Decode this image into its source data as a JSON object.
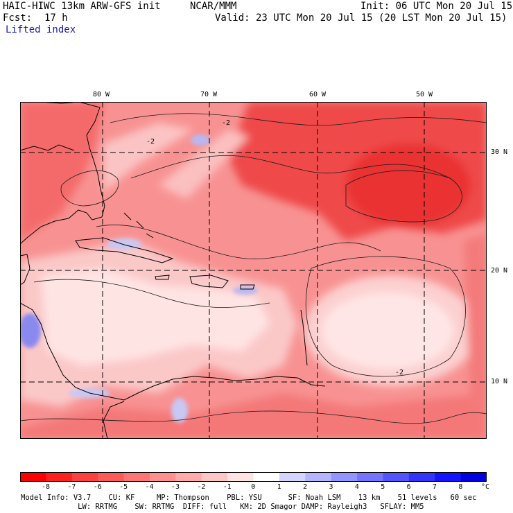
{
  "header": {
    "model_title": "HAIC-HIWC 13km ARW-GFS init",
    "org": "NCAR/MMM",
    "init": "Init: 06 UTC Mon 20 Jul 15",
    "fcst_label": "Fcst:",
    "fcst_value": "17 h",
    "valid": "Valid: 23 UTC Mon 20 Jul 15 (20 LST Mon 20 Jul 15)",
    "field": "Lifted index"
  },
  "map": {
    "lon_labels": [
      "80 W",
      "70 W",
      "60 W",
      "50 W"
    ],
    "lat_labels": [
      "30 N",
      "20 N",
      "10 N"
    ],
    "contour_label": "-2",
    "colors": {
      "deep_red": "#ee3b3b",
      "red": "#f46262",
      "salmon": "#f89292",
      "light": "#fbc4c4",
      "pale": "#ffe9e9",
      "blue_light": "#c8c8f4",
      "blue": "#8a8aee"
    }
  },
  "colorbar": {
    "labels": [
      "-8",
      "-7",
      "-6",
      "-5",
      "-4",
      "-3",
      "-2",
      "-1",
      "0",
      "1",
      "2",
      "3",
      "4",
      "5",
      "6",
      "7",
      "8"
    ],
    "unit": "°C",
    "colors": [
      "#ff0000",
      "#ff2020",
      "#ff4040",
      "#ff5a5a",
      "#ff7575",
      "#ff9090",
      "#ffabab",
      "#ffc6c6",
      "#ffe2e2",
      "#ffffff",
      "#d4d4ff",
      "#b4b4ff",
      "#9494ff",
      "#7474ff",
      "#5454ff",
      "#3434ff",
      "#1414ff",
      "#0000e0"
    ]
  },
  "footer": {
    "line1": "Model Info: V3.7    CU: KF     MP: Thompson    PBL: YSU      SF: Noah LSM    13 km    51 levels   60 sec",
    "line2": "             LW: RRTMG    SW: RRTMG  DIFF: full   KM: 2D Smagor DAMP: Rayleigh3   SFLAY: MM5"
  }
}
